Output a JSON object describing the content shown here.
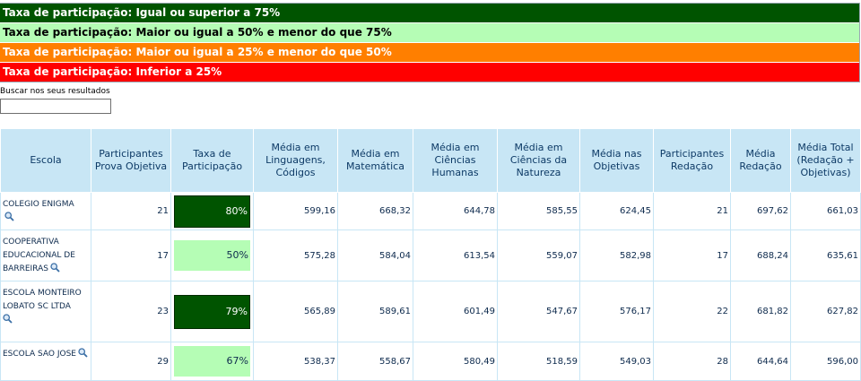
{
  "legend": [
    {
      "label": "Taxa de participação: Igual ou superior a 75%",
      "color": "#005400"
    },
    {
      "label": "Taxa de participação: Maior ou igual a 50% e menor do que 75%",
      "color": "#b5fdb5"
    },
    {
      "label": "Taxa de participação: Maior ou igual a 25% e menor do que 50%",
      "color": "#ff7f00"
    },
    {
      "label": "Taxa de participação: Inferior a 25%",
      "color": "#ff0000"
    }
  ],
  "search": {
    "label": "Buscar nos seus resultados",
    "value": "",
    "placeholder": ""
  },
  "table": {
    "headers": [
      "Escola",
      "Participantes Prova Objetiva",
      "Taxa de Participação",
      "Média em Linguagens, Códigos",
      "Média em Matemática",
      "Média em Ciências Humanas",
      "Média em Ciências da Natureza",
      "Média nas Objetivas",
      "Participantes Redação",
      "Média Redação",
      "Média Total (Redação + Objetivas)"
    ],
    "rows": [
      {
        "escola": "COLEGIO ENIGMA",
        "participantes": "21",
        "taxa": "80%",
        "taxa_level": "high",
        "linguagens": "599,16",
        "matematica": "668,32",
        "humanas": "644,78",
        "natureza": "585,55",
        "objetivas": "624,45",
        "part_redacao": "21",
        "redacao": "697,62",
        "total": "661,03"
      },
      {
        "escola": "COOPERATIVA EDUCACIONAL DE BARREIRAS",
        "participantes": "17",
        "taxa": "50%",
        "taxa_level": "mid",
        "linguagens": "575,28",
        "matematica": "584,04",
        "humanas": "613,54",
        "natureza": "559,07",
        "objetivas": "582,98",
        "part_redacao": "17",
        "redacao": "688,24",
        "total": "635,61"
      },
      {
        "escola": "ESCOLA MONTEIRO LOBATO SC LTDA",
        "participantes": "23",
        "taxa": "79%",
        "taxa_level": "high",
        "linguagens": "565,89",
        "matematica": "589,61",
        "humanas": "601,49",
        "natureza": "547,67",
        "objetivas": "576,17",
        "part_redacao": "22",
        "redacao": "681,82",
        "total": "627,82"
      },
      {
        "escola": "ESCOLA SAO JOSE",
        "participantes": "29",
        "taxa": "67%",
        "taxa_level": "mid",
        "linguagens": "538,37",
        "matematica": "558,67",
        "humanas": "580,49",
        "natureza": "518,59",
        "objetivas": "549,03",
        "part_redacao": "28",
        "redacao": "644,64",
        "total": "596,00"
      }
    ]
  },
  "icons": {
    "detail": "magnifier-icon"
  }
}
